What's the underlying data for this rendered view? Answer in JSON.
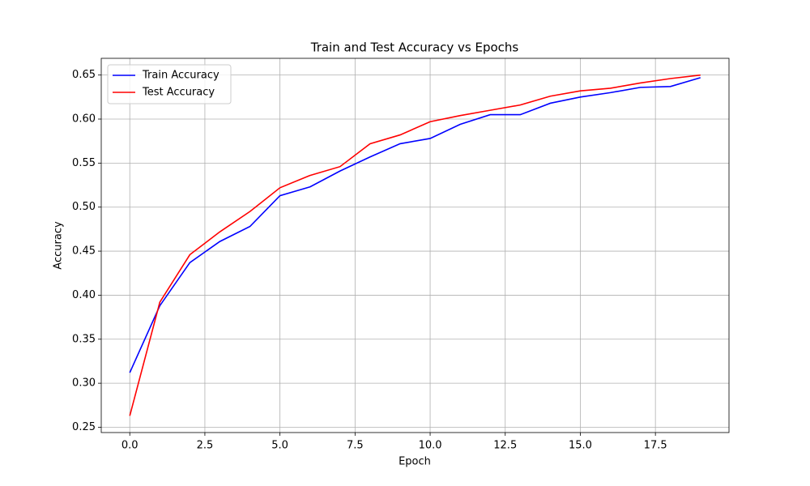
{
  "chart_data": {
    "type": "line",
    "title": "Train and Test Accuracy vs Epochs",
    "x_label": "Epoch",
    "y_label": "Accuracy",
    "x": [
      0,
      1,
      2,
      3,
      4,
      5,
      6,
      7,
      8,
      9,
      10,
      11,
      12,
      13,
      14,
      15,
      16,
      17,
      18,
      19
    ],
    "series": [
      {
        "name": "Train Accuracy",
        "color": "#0000ff",
        "values": [
          0.312,
          0.388,
          0.437,
          0.461,
          0.478,
          0.513,
          0.523,
          0.541,
          0.557,
          0.572,
          0.578,
          0.594,
          0.605,
          0.605,
          0.618,
          0.625,
          0.63,
          0.636,
          0.637,
          0.647
        ]
      },
      {
        "name": "Test Accuracy",
        "color": "#ff0000",
        "values": [
          0.263,
          0.392,
          0.446,
          0.472,
          0.495,
          0.522,
          0.536,
          0.546,
          0.572,
          0.582,
          0.597,
          0.604,
          0.61,
          0.616,
          0.626,
          0.632,
          0.635,
          0.641,
          0.646,
          0.65
        ]
      }
    ],
    "xlim": [
      -0.95,
      19.95
    ],
    "xticks": [
      {
        "value": 0,
        "label": "0.0"
      },
      2.5,
      {
        "value": 5,
        "label": "5.0"
      },
      7.5,
      {
        "value": 10,
        "label": "10.0"
      },
      12.5,
      {
        "value": 15,
        "label": "15.0"
      },
      17.5
    ],
    "ylim": [
      0.244,
      0.669
    ],
    "yticks": [
      0.25,
      {
        "value": 0.3,
        "label": "0.30"
      },
      0.35,
      {
        "value": 0.4,
        "label": "0.40"
      },
      0.45,
      {
        "value": 0.5,
        "label": "0.50"
      },
      0.55,
      {
        "value": 0.6,
        "label": "0.60"
      },
      0.65
    ],
    "grid": true,
    "legend": "upper-left"
  }
}
